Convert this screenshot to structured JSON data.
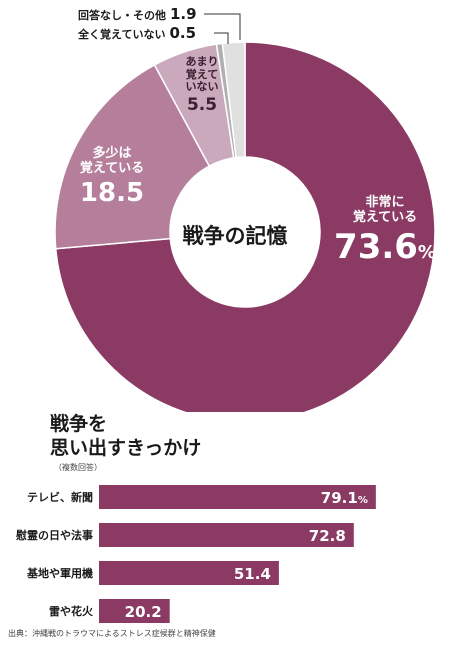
{
  "chart_data": [
    {
      "type": "pie",
      "title": "戦争の記憶",
      "slices": [
        {
          "label": "非常に覚えている",
          "value": 73.6,
          "value_text": "73.6",
          "unit": "%",
          "color": "#8a3a63"
        },
        {
          "label": "多少は覚えている",
          "value": 18.5,
          "value_text": "18.5",
          "color": "#b57f9c"
        },
        {
          "label": "あまり覚えていない",
          "value": 5.5,
          "value_text": "5.5",
          "color": "#c9a9bb"
        },
        {
          "label": "全く覚えていない",
          "value": 0.5,
          "value_text": "0.5",
          "color": "#b0b0b0"
        },
        {
          "label": "回答なし・その他",
          "value": 1.9,
          "value_text": "1.9",
          "color": "#e0e0e0"
        }
      ],
      "display_labels": [
        "非常に\n覚えている",
        "多少は\n覚えている",
        "あまり\n覚えて\nいない"
      ]
    },
    {
      "type": "bar",
      "title_lines": [
        "戦争を",
        "思い出すきっかけ"
      ],
      "note": "（複数回答）",
      "categories": [
        "テレビ、新聞",
        "慰霊の日や法事",
        "基地や軍用機",
        "雷や花火"
      ],
      "values": [
        79.1,
        72.8,
        51.4,
        20.2
      ],
      "value_texts": [
        "79.1",
        "72.8",
        "51.4",
        "20.2"
      ],
      "first_unit": "%",
      "color": "#8a3a63"
    }
  ],
  "source": "出典：沖縄戦のトラウマによるストレス症候群と精神保健"
}
